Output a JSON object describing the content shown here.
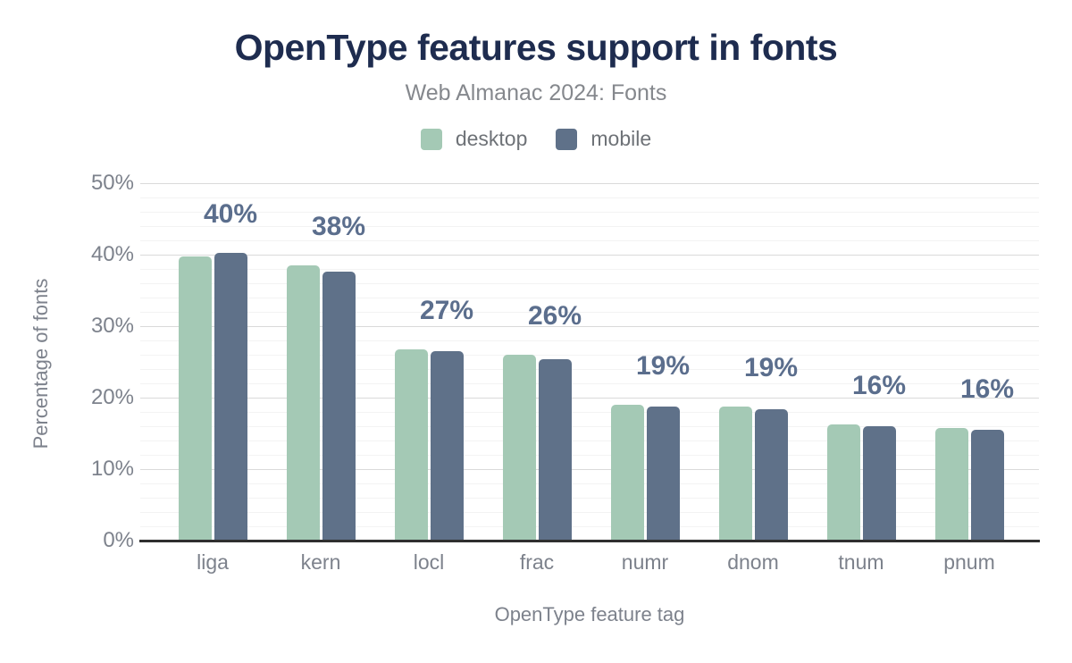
{
  "chart_data": {
    "type": "bar",
    "title": "OpenType features support in fonts",
    "subtitle": "Web Almanac 2024: Fonts",
    "xlabel": "OpenType feature tag",
    "ylabel": "Percentage of fonts",
    "categories": [
      "liga",
      "kern",
      "locl",
      "frac",
      "numr",
      "dnom",
      "tnum",
      "pnum"
    ],
    "series": [
      {
        "name": "desktop",
        "color": "#a4c9b5",
        "values": [
          39.7,
          38.5,
          26.8,
          26.0,
          19.0,
          18.8,
          16.2,
          15.8
        ]
      },
      {
        "name": "mobile",
        "color": "#5f7189",
        "values": [
          40.3,
          37.6,
          26.5,
          25.4,
          18.8,
          18.4,
          16.0,
          15.5
        ]
      }
    ],
    "data_labels": [
      "40%",
      "38%",
      "27%",
      "26%",
      "19%",
      "19%",
      "16%",
      "16%"
    ],
    "data_label_color": "#5b6e8d",
    "y_ticks": [
      "0%",
      "10%",
      "20%",
      "30%",
      "40%",
      "50%"
    ],
    "ylim": [
      0,
      50
    ],
    "grid": {
      "major_step": 10,
      "minor_step": 2,
      "on": true
    },
    "legend_position": "top"
  }
}
